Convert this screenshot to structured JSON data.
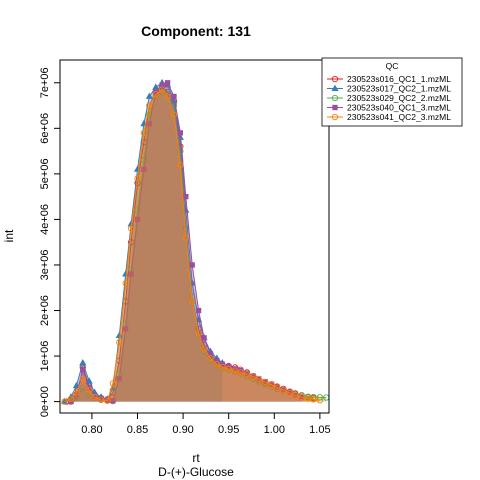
{
  "chart_data": {
    "type": "area",
    "title": "Component: 131",
    "xlabel": "rt",
    "xsublabel": "D-(+)-Glucose",
    "ylabel": "int",
    "xlim": [
      0.765,
      1.06
    ],
    "ylim": [
      -250000,
      7500000
    ],
    "x_ticks": [
      0.8,
      0.85,
      0.9,
      0.95,
      1.0,
      1.05
    ],
    "x_tick_labels": [
      "0.80",
      "0.85",
      "0.90",
      "0.95",
      "1.00",
      "1.05"
    ],
    "y_ticks": [
      0,
      1000000,
      2000000,
      3000000,
      4000000,
      5000000,
      6000000,
      7000000
    ],
    "y_tick_labels": [
      "0e+00",
      "1e+06",
      "2e+06",
      "3e+06",
      "4e+06",
      "5e+06",
      "6e+06",
      "7e+06"
    ],
    "legend": {
      "title": "QC",
      "position": "top-right"
    },
    "series": [
      {
        "name": "230523s016_QC1_1.mzML",
        "color": "#E41A1C",
        "marker": "circle",
        "x": [
          0.772,
          0.78,
          0.785,
          0.79,
          0.797,
          0.803,
          0.81,
          0.817,
          0.823,
          0.83,
          0.837,
          0.843,
          0.85,
          0.857,
          0.863,
          0.87,
          0.877,
          0.883,
          0.89,
          0.897,
          0.903,
          0.91,
          0.917,
          0.923,
          0.93,
          0.937,
          0.943,
          0.95,
          0.957,
          0.963,
          0.97,
          0.977,
          0.983,
          0.99,
          0.997,
          1.003,
          1.01,
          1.017,
          1.023,
          1.03,
          1.037,
          1.043
        ],
        "y": [
          0,
          80000,
          250000,
          750000,
          350000,
          150000,
          80000,
          50000,
          200000,
          900000,
          2200000,
          3500000,
          4800000,
          5700000,
          6500000,
          6800000,
          6900000,
          6800000,
          6600000,
          5600000,
          3800000,
          2200000,
          1600000,
          1250000,
          1000000,
          880000,
          820000,
          780000,
          750000,
          700000,
          640000,
          560000,
          480000,
          420000,
          380000,
          330000,
          280000,
          220000,
          180000,
          140000,
          100000,
          80000
        ]
      },
      {
        "name": "230523s017_QC2_1.mzML",
        "color": "#377EB8",
        "marker": "triangle",
        "x": [
          0.77,
          0.777,
          0.783,
          0.79,
          0.797,
          0.803,
          0.81,
          0.817,
          0.823,
          0.83,
          0.837,
          0.843,
          0.85,
          0.857,
          0.863,
          0.87,
          0.877,
          0.883,
          0.89,
          0.897,
          0.903,
          0.91,
          0.917,
          0.923,
          0.93,
          0.937,
          0.943
        ],
        "y": [
          0,
          100000,
          350000,
          850000,
          450000,
          200000,
          100000,
          50000,
          300000,
          1450000,
          2800000,
          3900000,
          5100000,
          6100000,
          6700000,
          6900000,
          7000000,
          6950000,
          6600000,
          5800000,
          4200000,
          2600000,
          1800000,
          1400000,
          1100000,
          950000,
          850000
        ]
      },
      {
        "name": "230523s029_QC2_2.mzML",
        "color": "#4DAF4A",
        "marker": "circle",
        "x": [
          0.777,
          0.783,
          0.79,
          0.797,
          0.803,
          0.81,
          0.817,
          0.823,
          0.83,
          0.837,
          0.843,
          0.85,
          0.857,
          0.863,
          0.87,
          0.877,
          0.883,
          0.89,
          0.897,
          0.903,
          0.91,
          0.917,
          0.923,
          0.93,
          0.937,
          0.943,
          0.95,
          0.957,
          0.963,
          0.97,
          0.977,
          0.983,
          0.99,
          0.997,
          1.003,
          1.01,
          1.017,
          1.023,
          1.03,
          1.037,
          1.043,
          1.05,
          1.057
        ],
        "y": [
          0,
          100000,
          300000,
          150000,
          80000,
          40000,
          20000,
          10000,
          600000,
          1700000,
          2900000,
          4200000,
          5300000,
          6300000,
          6700000,
          6800000,
          6750000,
          6500000,
          5500000,
          3800000,
          2300000,
          1500000,
          1100000,
          900000,
          800000,
          740000,
          700000,
          660000,
          620000,
          560000,
          500000,
          440000,
          380000,
          330000,
          280000,
          240000,
          200000,
          160000,
          130000,
          110000,
          100000,
          95000,
          90000
        ]
      },
      {
        "name": "230523s040_QC1_3.mzML",
        "color": "#984EA3",
        "marker": "square",
        "x": [
          0.777,
          0.783,
          0.79,
          0.797,
          0.803,
          0.81,
          0.817,
          0.823,
          0.83,
          0.837,
          0.843,
          0.85,
          0.857,
          0.863,
          0.87,
          0.877,
          0.883,
          0.89,
          0.897,
          0.903,
          0.91,
          0.917,
          0.923,
          0.93,
          0.937,
          0.943,
          0.95,
          0.957,
          0.963,
          0.97,
          0.977,
          0.983,
          0.99,
          0.997,
          1.003,
          1.01,
          1.017,
          1.023,
          1.03
        ],
        "y": [
          0,
          150000,
          700000,
          300000,
          120000,
          60000,
          30000,
          20000,
          500000,
          1600000,
          2800000,
          4000000,
          5100000,
          6100000,
          6800000,
          6950000,
          7000000,
          6700000,
          5900000,
          4500000,
          3000000,
          2000000,
          1400000,
          1050000,
          900000,
          820000,
          770000,
          720000,
          680000,
          620000,
          560000,
          500000,
          440000,
          380000,
          320000,
          260000,
          200000,
          140000,
          90000
        ]
      },
      {
        "name": "230523s041_QC2_3.mzML",
        "color": "#FF7F00",
        "marker": "circle",
        "x": [
          0.77,
          0.777,
          0.783,
          0.79,
          0.797,
          0.803,
          0.81,
          0.817,
          0.823,
          0.83,
          0.837,
          0.843,
          0.85,
          0.857,
          0.863,
          0.87,
          0.877,
          0.883,
          0.89,
          0.897,
          0.903,
          0.91,
          0.917,
          0.923,
          0.93,
          0.937,
          0.943,
          0.95,
          0.957,
          0.963,
          0.97,
          0.977,
          0.983,
          0.99,
          0.997,
          1.003,
          1.01,
          1.017,
          1.023,
          1.03,
          1.037,
          1.043,
          1.05
        ],
        "y": [
          0,
          60000,
          200000,
          500000,
          250000,
          100000,
          40000,
          20000,
          400000,
          1300000,
          2600000,
          3800000,
          4900000,
          5900000,
          6500000,
          6750000,
          6850000,
          6700000,
          6300000,
          5200000,
          3600000,
          2200000,
          1500000,
          1150000,
          950000,
          820000,
          760000,
          720000,
          680000,
          640000,
          600000,
          550000,
          490000,
          430000,
          370000,
          310000,
          250000,
          190000,
          140000,
          100000,
          70000,
          50000,
          30000
        ]
      }
    ]
  }
}
